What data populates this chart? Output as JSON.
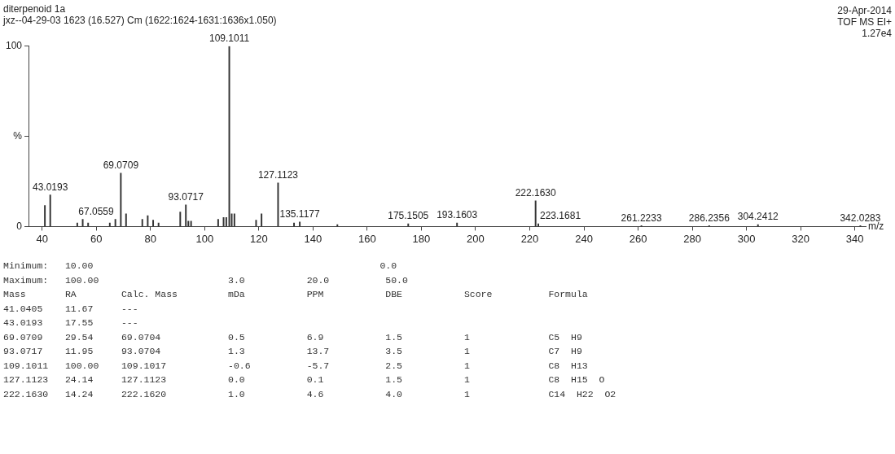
{
  "chart_data": {
    "type": "bar",
    "title": "diterpenoid 1a",
    "subtitle": "jxz--04-29-03 1623 (16.527) Cm (1622:1624-1631:1636x1.050)",
    "xlabel": "m/z",
    "x": [
      41.0405,
      43.0193,
      53,
      55,
      57,
      65,
      67.0559,
      69.0709,
      71,
      77,
      79,
      81,
      83,
      91,
      93.0717,
      94,
      95,
      105,
      107,
      108,
      109.1011,
      110,
      111,
      119,
      121,
      127.1123,
      133,
      135.1177,
      149,
      175.1505,
      193.1603,
      222.163,
      223.1681,
      261.2233,
      286.2356,
      304.2412,
      342.0283
    ],
    "values": [
      11.67,
      17.55,
      2,
      4,
      2,
      2,
      4,
      29.54,
      7,
      4,
      6,
      3.5,
      2,
      8,
      11.95,
      3,
      3,
      4,
      5,
      5,
      100,
      7,
      7,
      3.5,
      7,
      24.14,
      2,
      2.5,
      1,
      1.5,
      2,
      14.24,
      1.5,
      0.5,
      0.5,
      1,
      0.5
    ],
    "color": "#333333",
    "xlim": [
      35,
      344
    ],
    "xticks": [
      40,
      60,
      80,
      100,
      120,
      140,
      160,
      180,
      200,
      220,
      240,
      260,
      280,
      300,
      320,
      340
    ],
    "ylim": [
      0,
      100
    ],
    "yticks": [
      0,
      {
        "value": 50,
        "label": "%"
      },
      100
    ],
    "annotations": [
      "29-Apr-2014",
      "TOF MS EI+",
      "1.27e4",
      "Minimum:   10.00                                                   0.0",
      "Maximum:   100.00                       3.0           20.0          50.0",
      "Mass       RA        Calc. Mass         mDa           PPM           DBE           Score          Formula",
      "41.0405    11.67     ---",
      "43.0193    17.55     ---",
      "69.0709    29.54     69.0704            0.5           6.9           1.5           1              C5  H9",
      "93.0717    11.95     93.0704            1.3           13.7          3.5           1              C7  H9",
      "109.1011   100.00    109.1017           -0.6          -5.7          2.5           1              C8  H13",
      "127.1123   24.14     127.1123           0.0           0.1           1.5           1              C8  H15  O",
      "222.1630   14.24     222.1620           1.0           4.6           4.0           1              C14  H22  O2",
      {
        "text": "43.0193",
        "x": 43.0193,
        "y": 17.55
      },
      {
        "text": "67.0559",
        "x": 67.0559,
        "y": 4
      },
      {
        "text": "69.0709",
        "x": 69.0709,
        "y": 29.54
      },
      {
        "text": "93.0717",
        "x": 93.0717,
        "y": 11.95
      },
      {
        "text": "109.1011",
        "x": 109.1011,
        "y": 100
      },
      {
        "text": "127.1123",
        "x": 127.1123,
        "y": 24.14
      },
      {
        "text": "135.1177",
        "x": 135.1177,
        "y": 2.5
      },
      {
        "text": "175.1505",
        "x": 175.1505,
        "y": 1.5
      },
      {
        "text": "193.1603",
        "x": 193.1603,
        "y": 2
      },
      {
        "text": "222.1630",
        "x": 222.163,
        "y": 14.24
      },
      {
        "text": "223.1681",
        "x": 223.1681,
        "y": 1.5
      },
      {
        "text": "261.2233",
        "x": 261.2233,
        "y": 0.5
      },
      {
        "text": "286.2356",
        "x": 286.2356,
        "y": 0.5
      },
      {
        "text": "304.2412",
        "x": 304.2412,
        "y": 1
      },
      {
        "text": "342.0283",
        "x": 342.0283,
        "y": 0.5
      }
    ]
  }
}
